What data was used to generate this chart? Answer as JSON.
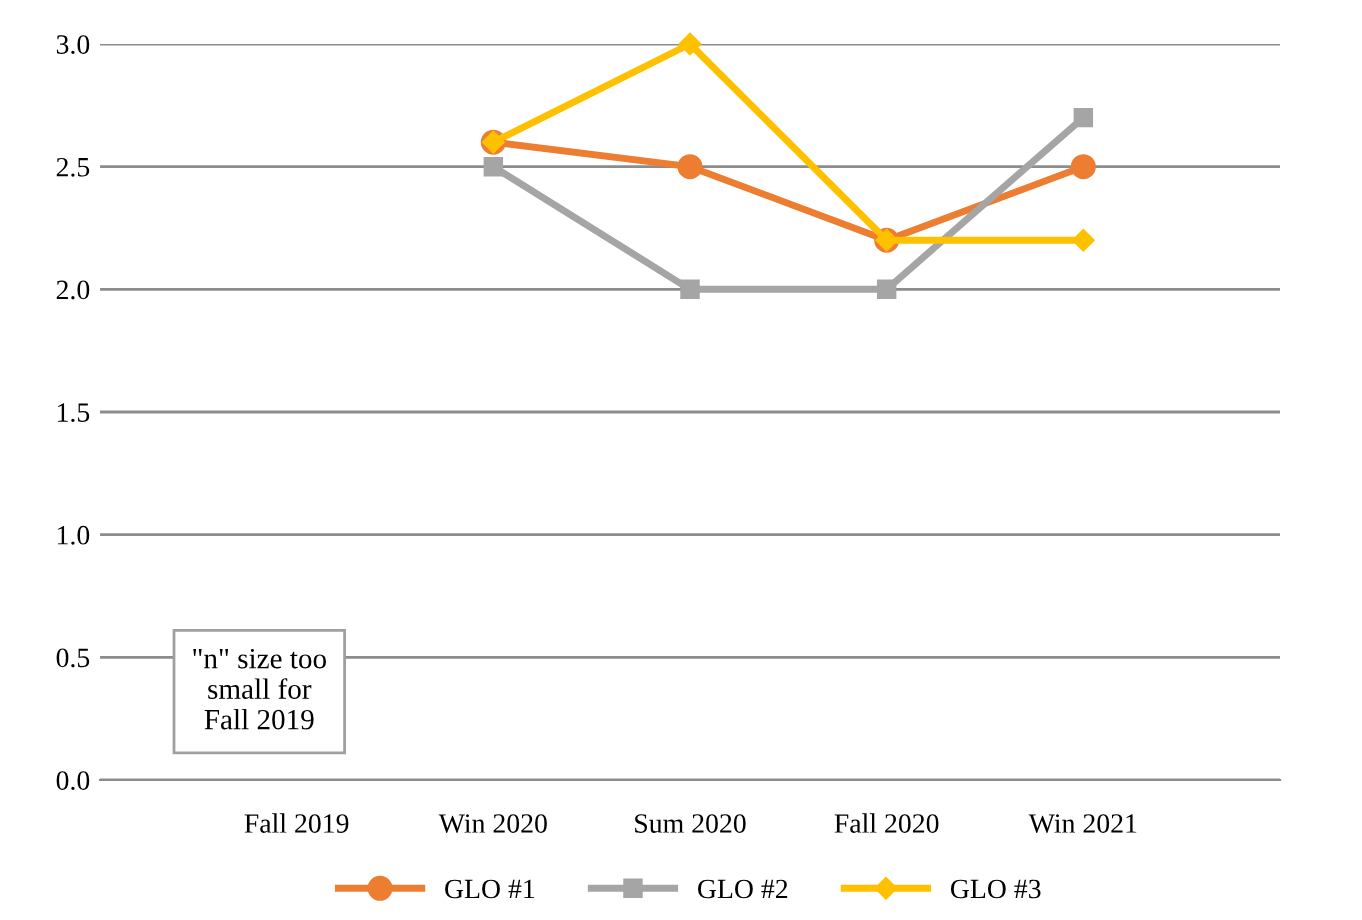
{
  "chart_data": {
    "type": "line",
    "categories": [
      null,
      "Fall 2019",
      "Win 2020",
      "Sum 2020",
      "Fall 2020",
      "Win 2021",
      null
    ],
    "series": [
      {
        "name": "GLO #1",
        "color": "#ed7d31",
        "marker": "circle",
        "values": [
          null,
          null,
          2.6,
          2.5,
          2.2,
          2.5,
          null
        ]
      },
      {
        "name": "GLO #2",
        "color": "#a5a5a5",
        "marker": "square",
        "values": [
          null,
          null,
          2.5,
          2.0,
          2.0,
          2.7,
          null
        ]
      },
      {
        "name": "GLO #3",
        "color": "#ffc000",
        "marker": "diamond",
        "values": [
          null,
          null,
          2.6,
          3.0,
          2.2,
          2.2,
          null
        ]
      }
    ],
    "ylim": [
      0,
      3
    ],
    "yticks": [
      {
        "value": 0,
        "label": "0.0"
      },
      {
        "value": 0.5,
        "label": "0.5"
      },
      {
        "value": 1,
        "label": "1.0"
      },
      {
        "value": 1.5,
        "label": "1.5"
      },
      {
        "value": 2,
        "label": "2.0"
      },
      {
        "value": 2.5,
        "label": "2.5"
      },
      {
        "value": 3,
        "label": "3.0"
      }
    ],
    "grid": "y",
    "legend": "bottom",
    "annotations": [
      "\"n\" size too\nsmall for\nFall 2019"
    ]
  }
}
